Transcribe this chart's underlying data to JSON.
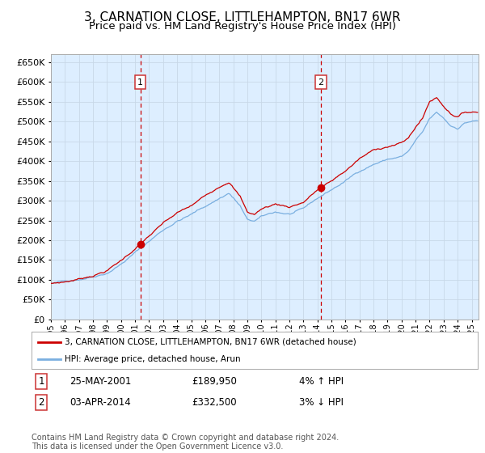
{
  "title": "3, CARNATION CLOSE, LITTLEHAMPTON, BN17 6WR",
  "subtitle": "Price paid vs. HM Land Registry's House Price Index (HPI)",
  "title_fontsize": 11,
  "subtitle_fontsize": 9.5,
  "background_color": "#ffffff",
  "plot_bg_color": "#ddeeff",
  "grid_color": "#c8d8e8",
  "red_line_color": "#cc0000",
  "blue_line_color": "#7aafe0",
  "marker_color": "#cc0000",
  "dashed_line_color": "#cc0000",
  "ylim": [
    0,
    670000
  ],
  "ytick_step": 50000,
  "xstart": 1995,
  "xend": 2025.5,
  "legend_label_red": "3, CARNATION CLOSE, LITTLEHAMPTON, BN17 6WR (detached house)",
  "legend_label_blue": "HPI: Average price, detached house, Arun",
  "annotation1_year": 2001.37,
  "annotation1_value": 189950,
  "annotation1_date": "25-MAY-2001",
  "annotation1_price": "£189,950",
  "annotation1_hpi": "4% ↑ HPI",
  "annotation2_year": 2014.25,
  "annotation2_value": 332500,
  "annotation2_date": "03-APR-2014",
  "annotation2_price": "£332,500",
  "annotation2_hpi": "3% ↓ HPI",
  "footer": "Contains HM Land Registry data © Crown copyright and database right 2024.\nThis data is licensed under the Open Government Licence v3.0.",
  "footer_fontsize": 7.0
}
